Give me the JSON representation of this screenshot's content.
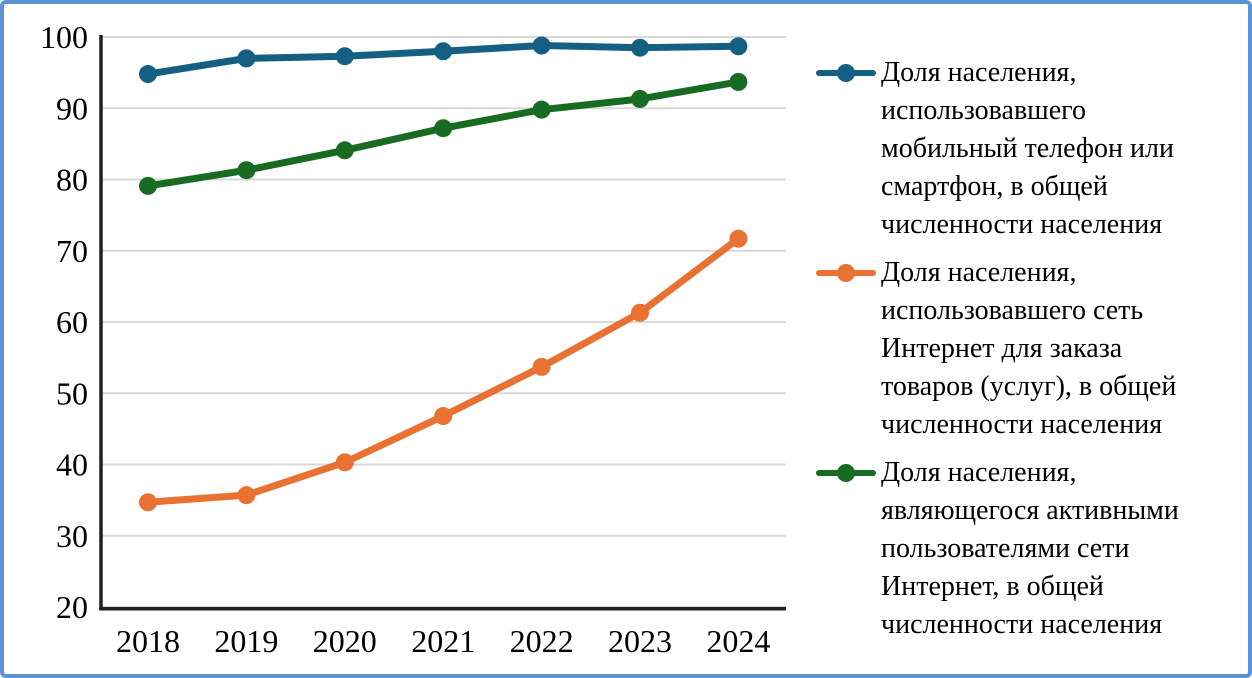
{
  "chart_data": {
    "type": "line",
    "x": [
      2018,
      2019,
      2020,
      2021,
      2022,
      2023,
      2024
    ],
    "series": [
      {
        "name": "Доля населения, использовавшего мобильный телефон или смартфон, в общей численности населения",
        "color": "#156082",
        "values": [
          94.8,
          97.0,
          97.3,
          98.0,
          98.8,
          98.5,
          98.7
        ]
      },
      {
        "name": "Доля населения, использовавшего сеть Интернет для заказа товаров (услуг), в общей численности населения",
        "color": "#E97132",
        "values": [
          34.7,
          35.7,
          40.3,
          46.8,
          53.7,
          61.3,
          71.7
        ]
      },
      {
        "name": "Доля населения, являющегося активными пользователями сети Интернет, в общей численности населения",
        "color": "#196B24",
        "values": [
          79.1,
          81.3,
          84.1,
          87.2,
          89.8,
          91.3,
          93.7
        ]
      }
    ],
    "title": "",
    "xlabel": "",
    "ylabel": "",
    "ylim": [
      20,
      100
    ],
    "yticks": [
      100,
      90,
      80,
      70,
      60,
      50,
      40,
      30,
      20
    ],
    "grid": true,
    "legend_position": "right",
    "grid_color": "#D9D9D9",
    "axis_color": "#1F1F1F",
    "frame_border_color": "#5B93D5"
  },
  "legend": {
    "items": [
      {
        "label": "Доля населения,\nиспользовавшего\nмобильный телефон или\nсмартфон, в общей\nчисленности населения"
      },
      {
        "label": "Доля населения,\nиспользовавшего сеть\nИнтернет для заказа\nтоваров (услуг), в общей\nчисленности населения"
      },
      {
        "label": "Доля населения,\nявляющегося активными\nпользователями сети\nИнтернет, в общей\nчисленности населения"
      }
    ]
  }
}
